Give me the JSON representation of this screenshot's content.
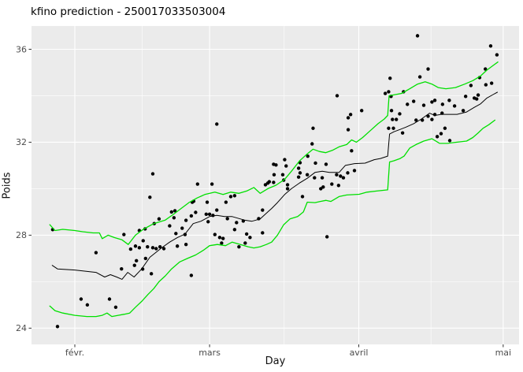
{
  "title": "kfino prediction - 250017033503004",
  "colors": {
    "panel_bg": "#EBEBEB",
    "grid": "#FFFFFF",
    "point": "#000000",
    "prediction_line": "#000000",
    "interval_line": "#00E000",
    "tick_label": "#4D4D4D",
    "tick_mark": "#333333"
  },
  "chart_data": {
    "type": "scatter",
    "title": "kfino prediction - 250017033503004",
    "xlabel": "Day",
    "ylabel": "Poids",
    "x_unit": "day-of-year",
    "x_range": [
      23,
      124.3
    ],
    "y_range": [
      23.3,
      37.0
    ],
    "x_ticks": [
      {
        "pos": 32,
        "label": "févr."
      },
      {
        "pos": 60,
        "label": "mars"
      },
      {
        "pos": 91,
        "label": "avril"
      },
      {
        "pos": 121,
        "label": "mai"
      }
    ],
    "x_minor": [
      46,
      75.5,
      106
    ],
    "y_ticks": [
      24,
      28,
      32,
      36
    ],
    "y_minor": [
      26,
      30,
      34
    ],
    "grid": true,
    "legend": "none",
    "points": [
      [
        27.4,
        28.24
      ],
      [
        28.4,
        24.07
      ],
      [
        33.3,
        25.25
      ],
      [
        34.6,
        25.0
      ],
      [
        36.4,
        27.25
      ],
      [
        39.2,
        25.25
      ],
      [
        40.5,
        24.9
      ],
      [
        41.7,
        26.55
      ],
      [
        42.2,
        28.03
      ],
      [
        43.6,
        27.4
      ],
      [
        44.4,
        26.7
      ],
      [
        44.6,
        27.53
      ],
      [
        44.8,
        26.9
      ],
      [
        45.4,
        28.2
      ],
      [
        45.4,
        27.46
      ],
      [
        46.1,
        26.54
      ],
      [
        46.2,
        27.76
      ],
      [
        46.6,
        28.27
      ],
      [
        46.7,
        27.0
      ],
      [
        47.1,
        27.5
      ],
      [
        47.6,
        29.63
      ],
      [
        47.9,
        26.34
      ],
      [
        48.2,
        30.64
      ],
      [
        48.2,
        27.46
      ],
      [
        48.5,
        28.5
      ],
      [
        48.9,
        27.42
      ],
      [
        49.5,
        28.7
      ],
      [
        49.7,
        27.5
      ],
      [
        50.5,
        27.42
      ],
      [
        51.7,
        28.4
      ],
      [
        52.1,
        29.0
      ],
      [
        52.6,
        28.75
      ],
      [
        52.8,
        29.05
      ],
      [
        53.0,
        28.07
      ],
      [
        53.3,
        27.53
      ],
      [
        54.3,
        28.3
      ],
      [
        54.9,
        28.03
      ],
      [
        55.1,
        27.6
      ],
      [
        55.1,
        28.64
      ],
      [
        56.2,
        26.27
      ],
      [
        56.2,
        28.83
      ],
      [
        56.4,
        29.42
      ],
      [
        56.7,
        29.46
      ],
      [
        57.1,
        28.98
      ],
      [
        57.5,
        30.2
      ],
      [
        59.3,
        28.9
      ],
      [
        59.5,
        29.42
      ],
      [
        59.7,
        28.58
      ],
      [
        60.0,
        28.9
      ],
      [
        60.5,
        30.2
      ],
      [
        60.7,
        28.85
      ],
      [
        61.1,
        28.03
      ],
      [
        61.5,
        32.78
      ],
      [
        61.5,
        29.08
      ],
      [
        62.1,
        27.9
      ],
      [
        62.5,
        27.66
      ],
      [
        62.8,
        27.86
      ],
      [
        63.4,
        29.42
      ],
      [
        63.7,
        28.71
      ],
      [
        64.4,
        29.66
      ],
      [
        65.2,
        29.7
      ],
      [
        65.2,
        28.24
      ],
      [
        65.6,
        28.54
      ],
      [
        66.1,
        27.5
      ],
      [
        67.0,
        28.61
      ],
      [
        67.4,
        27.66
      ],
      [
        67.7,
        28.05
      ],
      [
        68.4,
        27.9
      ],
      [
        70.2,
        28.71
      ],
      [
        71.0,
        29.08
      ],
      [
        71.0,
        28.1
      ],
      [
        71.6,
        30.17
      ],
      [
        72.1,
        30.24
      ],
      [
        72.4,
        30.3
      ],
      [
        73.3,
        30.27
      ],
      [
        73.3,
        31.05
      ],
      [
        73.4,
        30.6
      ],
      [
        73.8,
        31.02
      ],
      [
        75.2,
        30.6
      ],
      [
        75.4,
        30.37
      ],
      [
        75.6,
        31.25
      ],
      [
        75.9,
        30.98
      ],
      [
        76.2,
        30.17
      ],
      [
        76.2,
        30.0
      ],
      [
        78.5,
        30.88
      ],
      [
        78.5,
        30.5
      ],
      [
        78.8,
        31.12
      ],
      [
        78.8,
        30.68
      ],
      [
        79.3,
        29.66
      ],
      [
        80.4,
        31.4
      ],
      [
        80.3,
        30.6
      ],
      [
        81.3,
        31.93
      ],
      [
        81.5,
        32.6
      ],
      [
        82.0,
        31.1
      ],
      [
        81.8,
        30.47
      ],
      [
        83.4,
        30.47
      ],
      [
        83.1,
        30.0
      ],
      [
        83.6,
        30.07
      ],
      [
        84.4,
        27.93
      ],
      [
        84.2,
        31.05
      ],
      [
        85.4,
        30.2
      ],
      [
        86.8,
        30.14
      ],
      [
        86.4,
        30.6
      ],
      [
        86.5,
        34.0
      ],
      [
        87.2,
        30.54
      ],
      [
        87.8,
        30.47
      ],
      [
        88.7,
        30.68
      ],
      [
        88.8,
        32.54
      ],
      [
        88.8,
        33.05
      ],
      [
        89.3,
        33.19
      ],
      [
        89.5,
        31.63
      ],
      [
        90.1,
        30.78
      ],
      [
        91.6,
        33.36
      ],
      [
        96.5,
        34.1
      ],
      [
        97.2,
        34.17
      ],
      [
        97.2,
        32.6
      ],
      [
        97.5,
        34.75
      ],
      [
        97.7,
        33.97
      ],
      [
        97.8,
        33.36
      ],
      [
        98.0,
        32.98
      ],
      [
        98.2,
        32.6
      ],
      [
        98.8,
        32.98
      ],
      [
        99.5,
        33.22
      ],
      [
        100.1,
        32.4
      ],
      [
        100.3,
        34.17
      ],
      [
        101.1,
        33.63
      ],
      [
        102.4,
        33.76
      ],
      [
        102.9,
        32.95
      ],
      [
        103.2,
        36.58
      ],
      [
        103.7,
        34.81
      ],
      [
        104.2,
        32.95
      ],
      [
        104.5,
        33.59
      ],
      [
        105.4,
        35.15
      ],
      [
        105.4,
        33.12
      ],
      [
        106.2,
        33.73
      ],
      [
        106.2,
        32.98
      ],
      [
        106.8,
        33.8
      ],
      [
        106.8,
        33.19
      ],
      [
        107.3,
        32.24
      ],
      [
        108.1,
        32.37
      ],
      [
        108.3,
        33.25
      ],
      [
        108.4,
        33.63
      ],
      [
        108.9,
        32.6
      ],
      [
        109.8,
        33.8
      ],
      [
        109.9,
        32.07
      ],
      [
        110.9,
        33.56
      ],
      [
        112.7,
        33.36
      ],
      [
        113.2,
        33.97
      ],
      [
        114.3,
        34.44
      ],
      [
        115.0,
        33.9
      ],
      [
        115.5,
        33.86
      ],
      [
        115.8,
        34.03
      ],
      [
        116.1,
        34.78
      ],
      [
        117.3,
        35.15
      ],
      [
        117.4,
        34.47
      ],
      [
        118.4,
        36.14
      ],
      [
        118.6,
        34.54
      ],
      [
        119.7,
        35.76
      ]
    ],
    "series": [
      {
        "name": "prediction",
        "color": "#000000",
        "width": 1.0,
        "points": [
          [
            27.3,
            26.7
          ],
          [
            28.4,
            26.55
          ],
          [
            32.0,
            26.5
          ],
          [
            36.4,
            26.4
          ],
          [
            38.2,
            26.2
          ],
          [
            39.4,
            26.3
          ],
          [
            40.7,
            26.2
          ],
          [
            41.8,
            26.1
          ],
          [
            43.0,
            26.4
          ],
          [
            44.3,
            26.2
          ],
          [
            45.9,
            26.55
          ],
          [
            47.6,
            27.05
          ],
          [
            50.0,
            27.45
          ],
          [
            51.7,
            27.7
          ],
          [
            53.3,
            27.9
          ],
          [
            54.9,
            28.05
          ],
          [
            56.6,
            28.5
          ],
          [
            58.2,
            28.6
          ],
          [
            60.0,
            28.8
          ],
          [
            61.5,
            28.85
          ],
          [
            63.1,
            28.8
          ],
          [
            64.7,
            28.8
          ],
          [
            67.2,
            28.65
          ],
          [
            68.8,
            28.6
          ],
          [
            70.5,
            28.7
          ],
          [
            72.1,
            29.0
          ],
          [
            72.9,
            29.15
          ],
          [
            74.1,
            29.4
          ],
          [
            75.6,
            29.75
          ],
          [
            77.0,
            30.0
          ],
          [
            78.7,
            30.25
          ],
          [
            80.3,
            30.45
          ],
          [
            81.9,
            30.7
          ],
          [
            83.4,
            30.75
          ],
          [
            84.9,
            30.7
          ],
          [
            86.9,
            30.7
          ],
          [
            88.2,
            31.0
          ],
          [
            90.1,
            31.08
          ],
          [
            92.3,
            31.1
          ],
          [
            94.2,
            31.25
          ],
          [
            95.5,
            31.3
          ],
          [
            97.0,
            31.4
          ],
          [
            97.4,
            32.35
          ],
          [
            98.3,
            32.45
          ],
          [
            99.6,
            32.55
          ],
          [
            100.8,
            32.65
          ],
          [
            102.4,
            32.8
          ],
          [
            104.0,
            33.0
          ],
          [
            105.7,
            33.25
          ],
          [
            106.8,
            33.15
          ],
          [
            108.1,
            33.2
          ],
          [
            109.8,
            33.2
          ],
          [
            111.4,
            33.2
          ],
          [
            113.4,
            33.3
          ],
          [
            115.0,
            33.5
          ],
          [
            116.3,
            33.65
          ],
          [
            117.6,
            33.9
          ],
          [
            118.9,
            34.05
          ],
          [
            119.8,
            34.15
          ]
        ]
      },
      {
        "name": "upper-interval",
        "color": "#00E000",
        "width": 1.3,
        "points": [
          [
            26.8,
            28.45
          ],
          [
            27.9,
            28.2
          ],
          [
            29.5,
            28.25
          ],
          [
            32.0,
            28.2
          ],
          [
            33.6,
            28.15
          ],
          [
            35.8,
            28.1
          ],
          [
            37.1,
            28.1
          ],
          [
            37.7,
            27.85
          ],
          [
            38.9,
            28.0
          ],
          [
            40.2,
            27.9
          ],
          [
            41.8,
            27.8
          ],
          [
            43.1,
            27.6
          ],
          [
            44.6,
            28.0
          ],
          [
            46.2,
            28.25
          ],
          [
            48.4,
            28.5
          ],
          [
            50.8,
            28.65
          ],
          [
            52.5,
            28.9
          ],
          [
            54.1,
            29.15
          ],
          [
            55.7,
            29.4
          ],
          [
            57.4,
            29.6
          ],
          [
            59.0,
            29.75
          ],
          [
            61.1,
            29.85
          ],
          [
            62.8,
            29.75
          ],
          [
            64.4,
            29.85
          ],
          [
            66.1,
            29.8
          ],
          [
            67.7,
            29.9
          ],
          [
            69.2,
            30.05
          ],
          [
            70.5,
            29.8
          ],
          [
            72.1,
            30.0
          ],
          [
            73.8,
            30.15
          ],
          [
            75.6,
            30.4
          ],
          [
            77.0,
            30.75
          ],
          [
            78.7,
            31.2
          ],
          [
            80.3,
            31.5
          ],
          [
            81.5,
            31.7
          ],
          [
            82.8,
            31.6
          ],
          [
            84.1,
            31.55
          ],
          [
            85.5,
            31.65
          ],
          [
            86.9,
            31.8
          ],
          [
            88.5,
            31.9
          ],
          [
            89.5,
            32.1
          ],
          [
            90.5,
            32.0
          ],
          [
            91.8,
            32.2
          ],
          [
            93.4,
            32.5
          ],
          [
            95.0,
            32.8
          ],
          [
            96.3,
            33.0
          ],
          [
            97.0,
            33.15
          ],
          [
            97.3,
            34.0
          ],
          [
            98.6,
            34.05
          ],
          [
            99.9,
            34.1
          ],
          [
            101.6,
            34.3
          ],
          [
            103.2,
            34.5
          ],
          [
            104.8,
            34.6
          ],
          [
            106.2,
            34.5
          ],
          [
            107.5,
            34.35
          ],
          [
            109.1,
            34.3
          ],
          [
            111.1,
            34.35
          ],
          [
            113.0,
            34.5
          ],
          [
            114.7,
            34.65
          ],
          [
            116.3,
            34.85
          ],
          [
            117.6,
            35.1
          ],
          [
            118.9,
            35.3
          ],
          [
            119.9,
            35.45
          ]
        ]
      },
      {
        "name": "lower-interval",
        "color": "#00E000",
        "width": 1.3,
        "points": [
          [
            26.8,
            24.95
          ],
          [
            27.9,
            24.75
          ],
          [
            29.5,
            24.65
          ],
          [
            32.0,
            24.55
          ],
          [
            34.5,
            24.5
          ],
          [
            36.4,
            24.5
          ],
          [
            37.7,
            24.55
          ],
          [
            38.7,
            24.65
          ],
          [
            39.7,
            24.5
          ],
          [
            41.0,
            24.55
          ],
          [
            42.3,
            24.6
          ],
          [
            43.4,
            24.65
          ],
          [
            44.6,
            24.9
          ],
          [
            45.9,
            25.15
          ],
          [
            47.2,
            25.45
          ],
          [
            48.4,
            25.7
          ],
          [
            49.5,
            26.0
          ],
          [
            50.8,
            26.25
          ],
          [
            52.1,
            26.55
          ],
          [
            53.8,
            26.85
          ],
          [
            55.4,
            27.0
          ],
          [
            57.1,
            27.15
          ],
          [
            58.7,
            27.35
          ],
          [
            60.0,
            27.55
          ],
          [
            61.6,
            27.6
          ],
          [
            63.3,
            27.55
          ],
          [
            64.7,
            27.7
          ],
          [
            66.4,
            27.6
          ],
          [
            68.0,
            27.5
          ],
          [
            69.2,
            27.45
          ],
          [
            70.5,
            27.5
          ],
          [
            71.8,
            27.6
          ],
          [
            72.9,
            27.7
          ],
          [
            74.1,
            28.0
          ],
          [
            75.4,
            28.45
          ],
          [
            76.7,
            28.7
          ],
          [
            78.3,
            28.8
          ],
          [
            79.5,
            29.0
          ],
          [
            80.3,
            29.42
          ],
          [
            81.9,
            29.4
          ],
          [
            83.0,
            29.45
          ],
          [
            84.2,
            29.5
          ],
          [
            85.2,
            29.45
          ],
          [
            86.9,
            29.66
          ],
          [
            88.5,
            29.73
          ],
          [
            91.1,
            29.76
          ],
          [
            92.7,
            29.85
          ],
          [
            94.7,
            29.9
          ],
          [
            97.0,
            29.95
          ],
          [
            97.4,
            31.15
          ],
          [
            98.3,
            31.2
          ],
          [
            99.6,
            31.3
          ],
          [
            100.4,
            31.4
          ],
          [
            101.6,
            31.75
          ],
          [
            102.9,
            31.9
          ],
          [
            104.5,
            32.05
          ],
          [
            106.2,
            32.15
          ],
          [
            107.8,
            31.95
          ],
          [
            109.4,
            31.95
          ],
          [
            111.4,
            32.0
          ],
          [
            113.4,
            32.05
          ],
          [
            114.7,
            32.2
          ],
          [
            115.8,
            32.4
          ],
          [
            116.8,
            32.6
          ],
          [
            118.0,
            32.75
          ],
          [
            119.3,
            32.95
          ]
        ]
      }
    ]
  }
}
